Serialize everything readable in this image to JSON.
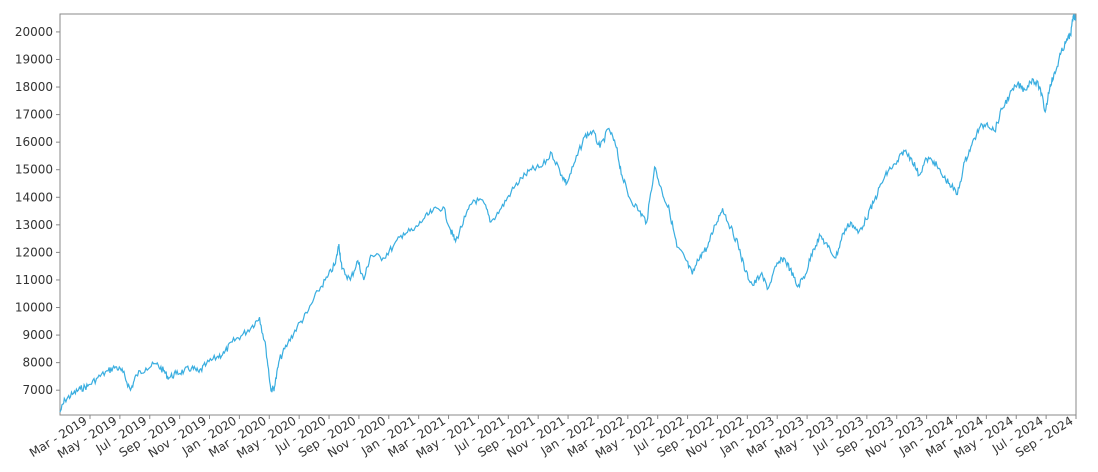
{
  "chart_data": {
    "type": "line",
    "title": "",
    "xlabel": "",
    "ylabel": "",
    "grid": false,
    "legend": "none",
    "line_color": "#3aaee0",
    "x_tick_labels": [
      "Mar - 2019",
      "May - 2019",
      "Jul - 2019",
      "Sep - 2019",
      "Nov - 2019",
      "Jan - 2020",
      "Mar - 2020",
      "May - 2020",
      "Jul - 2020",
      "Sep - 2020",
      "Nov - 2020",
      "Jan - 2021",
      "Mar - 2021",
      "May - 2021",
      "Jul - 2021",
      "Sep - 2021",
      "Nov - 2021",
      "Jan - 2022",
      "Mar - 2022",
      "May - 2022",
      "Jul - 2022",
      "Sep - 2022",
      "Nov - 2022",
      "Jan - 2023",
      "Mar - 2023",
      "May - 2023",
      "Jul - 2023",
      "Sep - 2023",
      "Nov - 2023",
      "Jan - 2024",
      "Mar - 2024",
      "May - 2024",
      "Jul - 2024",
      "Sep - 2024"
    ],
    "y_ticks": [
      7000,
      8000,
      9000,
      10000,
      11000,
      12000,
      13000,
      14000,
      15000,
      16000,
      17000,
      18000,
      19000,
      20000
    ],
    "ylim": [
      6100,
      20650
    ],
    "xlim": [
      "2019-02-28",
      "2024-10-06"
    ],
    "series": [
      {
        "values": [
          [
            "2019-02-28",
            6200
          ],
          [
            "2019-03-10",
            6650
          ],
          [
            "2019-03-25",
            6850
          ],
          [
            "2019-04-10",
            7050
          ],
          [
            "2019-04-25",
            7150
          ],
          [
            "2019-05-15",
            7450
          ],
          [
            "2019-06-05",
            7700
          ],
          [
            "2019-06-20",
            7850
          ],
          [
            "2019-07-05",
            7650
          ],
          [
            "2019-07-20",
            7000
          ],
          [
            "2019-08-01",
            7550
          ],
          [
            "2019-08-20",
            7800
          ],
          [
            "2019-09-10",
            7950
          ],
          [
            "2019-09-25",
            7700
          ],
          [
            "2019-10-05",
            7450
          ],
          [
            "2019-10-20",
            7600
          ],
          [
            "2019-11-05",
            7700
          ],
          [
            "2019-11-20",
            7800
          ],
          [
            "2019-12-05",
            7650
          ],
          [
            "2019-12-20",
            7950
          ],
          [
            "2020-01-10",
            8200
          ],
          [
            "2020-01-25",
            8350
          ],
          [
            "2020-02-10",
            8750
          ],
          [
            "2020-03-01",
            9000
          ],
          [
            "2020-03-20",
            9300
          ],
          [
            "2020-04-05",
            9650
          ],
          [
            "2020-04-18",
            8500
          ],
          [
            "2020-04-28",
            7000
          ],
          [
            "2020-05-05",
            7100
          ],
          [
            "2020-05-15",
            8100
          ],
          [
            "2020-06-01",
            8700
          ],
          [
            "2020-06-20",
            9300
          ],
          [
            "2020-07-10",
            9800
          ],
          [
            "2020-08-01",
            10600
          ],
          [
            "2020-08-20",
            11100
          ],
          [
            "2020-09-05",
            11600
          ],
          [
            "2020-09-12",
            12300
          ],
          [
            "2020-09-18",
            11400
          ],
          [
            "2020-10-05",
            11000
          ],
          [
            "2020-10-20",
            11700
          ],
          [
            "2020-11-01",
            11000
          ],
          [
            "2020-11-15",
            11900
          ],
          [
            "2020-12-10",
            11800
          ],
          [
            "2020-12-30",
            12200
          ],
          [
            "2021-01-20",
            12700
          ],
          [
            "2021-02-10",
            12800
          ],
          [
            "2021-03-01",
            13200
          ],
          [
            "2021-03-20",
            13500
          ],
          [
            "2021-04-10",
            13650
          ],
          [
            "2021-04-25",
            12800
          ],
          [
            "2021-05-05",
            12400
          ],
          [
            "2021-05-25",
            13300
          ],
          [
            "2021-06-10",
            13900
          ],
          [
            "2021-07-01",
            13800
          ],
          [
            "2021-07-15",
            13100
          ],
          [
            "2021-08-05",
            13600
          ],
          [
            "2021-08-25",
            14200
          ],
          [
            "2021-09-15",
            14700
          ],
          [
            "2021-10-05",
            15000
          ],
          [
            "2021-10-25",
            15100
          ],
          [
            "2021-11-15",
            15600
          ],
          [
            "2021-12-05",
            14800
          ],
          [
            "2021-12-15",
            14500
          ],
          [
            "2022-01-01",
            15300
          ],
          [
            "2022-01-20",
            16200
          ],
          [
            "2022-02-05",
            16400
          ],
          [
            "2022-02-20",
            15800
          ],
          [
            "2022-03-10",
            16500
          ],
          [
            "2022-03-25",
            15800
          ],
          [
            "2022-04-05",
            14800
          ],
          [
            "2022-04-20",
            14000
          ],
          [
            "2022-05-10",
            13500
          ],
          [
            "2022-05-25",
            13100
          ],
          [
            "2022-06-10",
            15100
          ],
          [
            "2022-06-25",
            14200
          ],
          [
            "2022-07-10",
            13500
          ],
          [
            "2022-07-25",
            12200
          ],
          [
            "2022-08-10",
            11800
          ],
          [
            "2022-08-25",
            11200
          ],
          [
            "2022-09-10",
            11900
          ],
          [
            "2022-09-25",
            12200
          ],
          [
            "2022-10-10",
            13000
          ],
          [
            "2022-10-25",
            13600
          ],
          [
            "2022-11-10",
            12900
          ],
          [
            "2022-11-25",
            12300
          ],
          [
            "2022-12-10",
            11300
          ],
          [
            "2022-12-25",
            10800
          ],
          [
            "2023-01-10",
            11200
          ],
          [
            "2023-01-25",
            10700
          ],
          [
            "2023-02-10",
            11500
          ],
          [
            "2023-02-25",
            11800
          ],
          [
            "2023-03-10",
            11400
          ],
          [
            "2023-03-25",
            10750
          ],
          [
            "2023-04-10",
            11200
          ],
          [
            "2023-04-25",
            12100
          ],
          [
            "2023-05-10",
            12600
          ],
          [
            "2023-05-25",
            12200
          ],
          [
            "2023-06-10",
            11800
          ],
          [
            "2023-06-25",
            12700
          ],
          [
            "2023-07-10",
            13100
          ],
          [
            "2023-07-25",
            12700
          ],
          [
            "2023-08-10",
            13200
          ],
          [
            "2023-08-25",
            13800
          ],
          [
            "2023-09-10",
            14500
          ],
          [
            "2023-09-25",
            15000
          ],
          [
            "2023-10-10",
            15200
          ],
          [
            "2023-10-25",
            15700
          ],
          [
            "2023-11-10",
            15400
          ],
          [
            "2023-11-25",
            14800
          ],
          [
            "2023-12-10",
            15400
          ],
          [
            "2023-12-25",
            15300
          ],
          [
            "2024-01-10",
            14800
          ],
          [
            "2024-01-25",
            14500
          ],
          [
            "2024-02-10",
            14100
          ],
          [
            "2024-02-25",
            15300
          ],
          [
            "2024-03-10",
            15900
          ],
          [
            "2024-03-25",
            16500
          ],
          [
            "2024-04-10",
            16700
          ],
          [
            "2024-04-25",
            16400
          ],
          [
            "2024-05-10",
            17200
          ],
          [
            "2024-05-25",
            17700
          ],
          [
            "2024-06-10",
            18100
          ],
          [
            "2024-06-25",
            17900
          ],
          [
            "2024-07-10",
            18300
          ],
          [
            "2024-07-25",
            18000
          ],
          [
            "2024-08-05",
            17100
          ],
          [
            "2024-08-15",
            18100
          ],
          [
            "2024-08-25",
            18500
          ],
          [
            "2024-09-05",
            19200
          ],
          [
            "2024-09-15",
            19600
          ],
          [
            "2024-09-25",
            19900
          ],
          [
            "2024-10-01",
            20600
          ],
          [
            "2024-10-05",
            20500
          ]
        ]
      }
    ]
  }
}
